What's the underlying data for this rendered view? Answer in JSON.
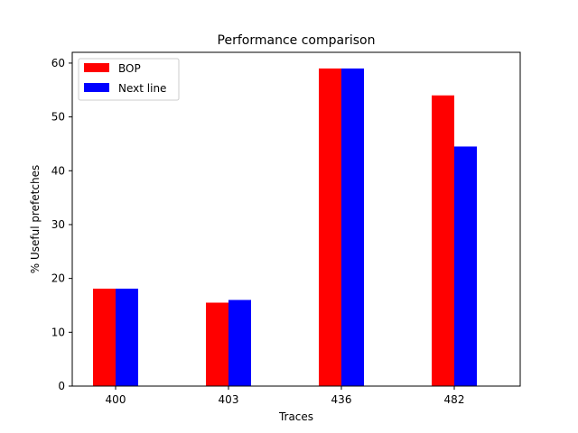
{
  "chart_data": {
    "type": "bar",
    "title": "Performance comparison",
    "xlabel": "Traces",
    "ylabel": "% Useful prefetches",
    "categories": [
      "400",
      "403",
      "436",
      "482"
    ],
    "series": [
      {
        "name": "BOP",
        "values": [
          18.1,
          15.5,
          59.0,
          54.0
        ],
        "color": "#ff0000"
      },
      {
        "name": "Next line",
        "values": [
          18.1,
          16.0,
          59.0,
          44.5
        ],
        "color": "#0000ff"
      }
    ],
    "ylim": [
      0,
      62
    ],
    "yticks": [
      0,
      10,
      20,
      30,
      40,
      50,
      60
    ],
    "grid": false,
    "legend_position": "top-left"
  }
}
